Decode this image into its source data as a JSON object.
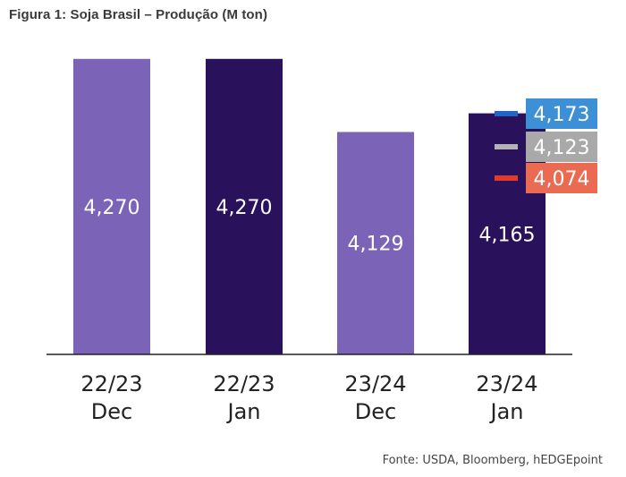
{
  "title": "Figura 1: Soja Brasil – Produção (M ton)",
  "source": "Fonte: USDA, Bloomberg, hEDGEpoint",
  "colors": {
    "light_bar": "#7b63b8",
    "dark_bar": "#29115c",
    "axis": "#222222",
    "bar_label": "#ffffff",
    "category_label": "#222222"
  },
  "chart_data": {
    "type": "bar",
    "categories": [
      {
        "line1": "22/23",
        "line2": "Dec"
      },
      {
        "line1": "22/23",
        "line2": "Jan"
      },
      {
        "line1": "23/24",
        "line2": "Dec"
      },
      {
        "line1": "23/24",
        "line2": "Jan"
      }
    ],
    "values": [
      4270,
      4270,
      4129,
      4165
    ],
    "value_labels": [
      "4,270",
      "4,270",
      "4,129",
      "4,165"
    ],
    "bar_colors": [
      "#7b63b8",
      "#29115c",
      "#7b63b8",
      "#29115c"
    ],
    "ylim": [
      3700,
      4280
    ],
    "markers": [
      {
        "value": 4173,
        "label": "4,173",
        "color": "#2166c4",
        "box_color": "#3d8fd6"
      },
      {
        "value": 4123,
        "label": "4,123",
        "color": "#b3b3b3",
        "box_color": "#a9a9a9"
      },
      {
        "value": 4074,
        "label": "4,074",
        "color": "#e03a2a",
        "box_color": "#ea6a52"
      }
    ]
  }
}
